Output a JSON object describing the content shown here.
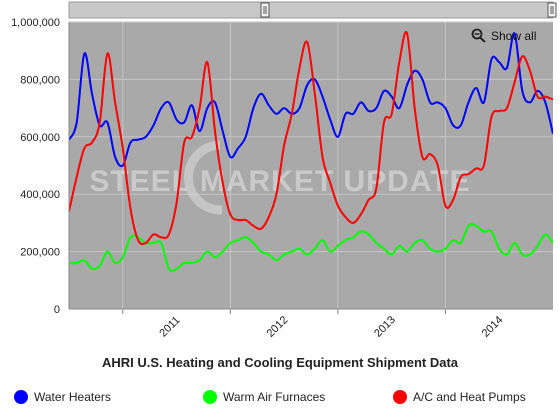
{
  "chart_data": {
    "type": "line",
    "title": "AHRI U.S. Heating and Cooling Equipment Shipment Data",
    "watermark": "STEEL MARKET UPDATE",
    "show_all_label": "Show all",
    "x_start": "2010-07",
    "x_end": "2015-01",
    "x_tick_labels": [
      "2011",
      "2012",
      "2013",
      "2014"
    ],
    "y_ticks": [
      "0",
      "200,000",
      "400,000",
      "600,000",
      "800,000",
      "1,000,000"
    ],
    "ylim": [
      0,
      1000000
    ],
    "grid": true,
    "legend_position": "bottom",
    "plot_background": "#a9a9a9",
    "series": [
      {
        "name": "Water Heaters",
        "color": "#0000ff",
        "values": [
          590000,
          650000,
          890000,
          750000,
          640000,
          650000,
          530000,
          500000,
          580000,
          590000,
          600000,
          640000,
          700000,
          720000,
          660000,
          650000,
          710000,
          620000,
          700000,
          720000,
          620000,
          530000,
          560000,
          600000,
          700000,
          750000,
          710000,
          680000,
          700000,
          680000,
          700000,
          780000,
          800000,
          740000,
          660000,
          600000,
          680000,
          680000,
          720000,
          690000,
          700000,
          760000,
          740000,
          700000,
          780000,
          830000,
          800000,
          720000,
          720000,
          700000,
          640000,
          640000,
          720000,
          770000,
          720000,
          870000,
          860000,
          840000,
          960000,
          760000,
          720000,
          760000,
          720000,
          610000
        ]
      },
      {
        "name": "Warm Air Furnaces",
        "color": "#00ff00",
        "values": [
          160000,
          160000,
          170000,
          140000,
          150000,
          200000,
          160000,
          180000,
          250000,
          250000,
          230000,
          230000,
          230000,
          140000,
          140000,
          160000,
          160000,
          170000,
          200000,
          180000,
          200000,
          230000,
          240000,
          250000,
          230000,
          200000,
          190000,
          170000,
          190000,
          200000,
          210000,
          190000,
          210000,
          240000,
          200000,
          220000,
          240000,
          250000,
          270000,
          260000,
          230000,
          210000,
          190000,
          220000,
          200000,
          230000,
          240000,
          210000,
          200000,
          210000,
          240000,
          230000,
          290000,
          290000,
          270000,
          270000,
          210000,
          190000,
          230000,
          190000,
          190000,
          220000,
          260000,
          230000
        ]
      },
      {
        "name": "A/C and Heat Pumps",
        "color": "#ff0000",
        "values": [
          340000,
          460000,
          560000,
          580000,
          650000,
          890000,
          720000,
          560000,
          350000,
          240000,
          230000,
          260000,
          250000,
          260000,
          370000,
          580000,
          600000,
          700000,
          860000,
          620000,
          440000,
          330000,
          310000,
          310000,
          290000,
          280000,
          320000,
          400000,
          570000,
          680000,
          840000,
          930000,
          750000,
          530000,
          440000,
          360000,
          320000,
          300000,
          330000,
          380000,
          420000,
          650000,
          680000,
          860000,
          960000,
          700000,
          530000,
          540000,
          500000,
          360000,
          380000,
          460000,
          470000,
          490000,
          500000,
          670000,
          690000,
          700000,
          790000,
          880000,
          830000,
          740000,
          740000,
          730000
        ]
      }
    ]
  }
}
